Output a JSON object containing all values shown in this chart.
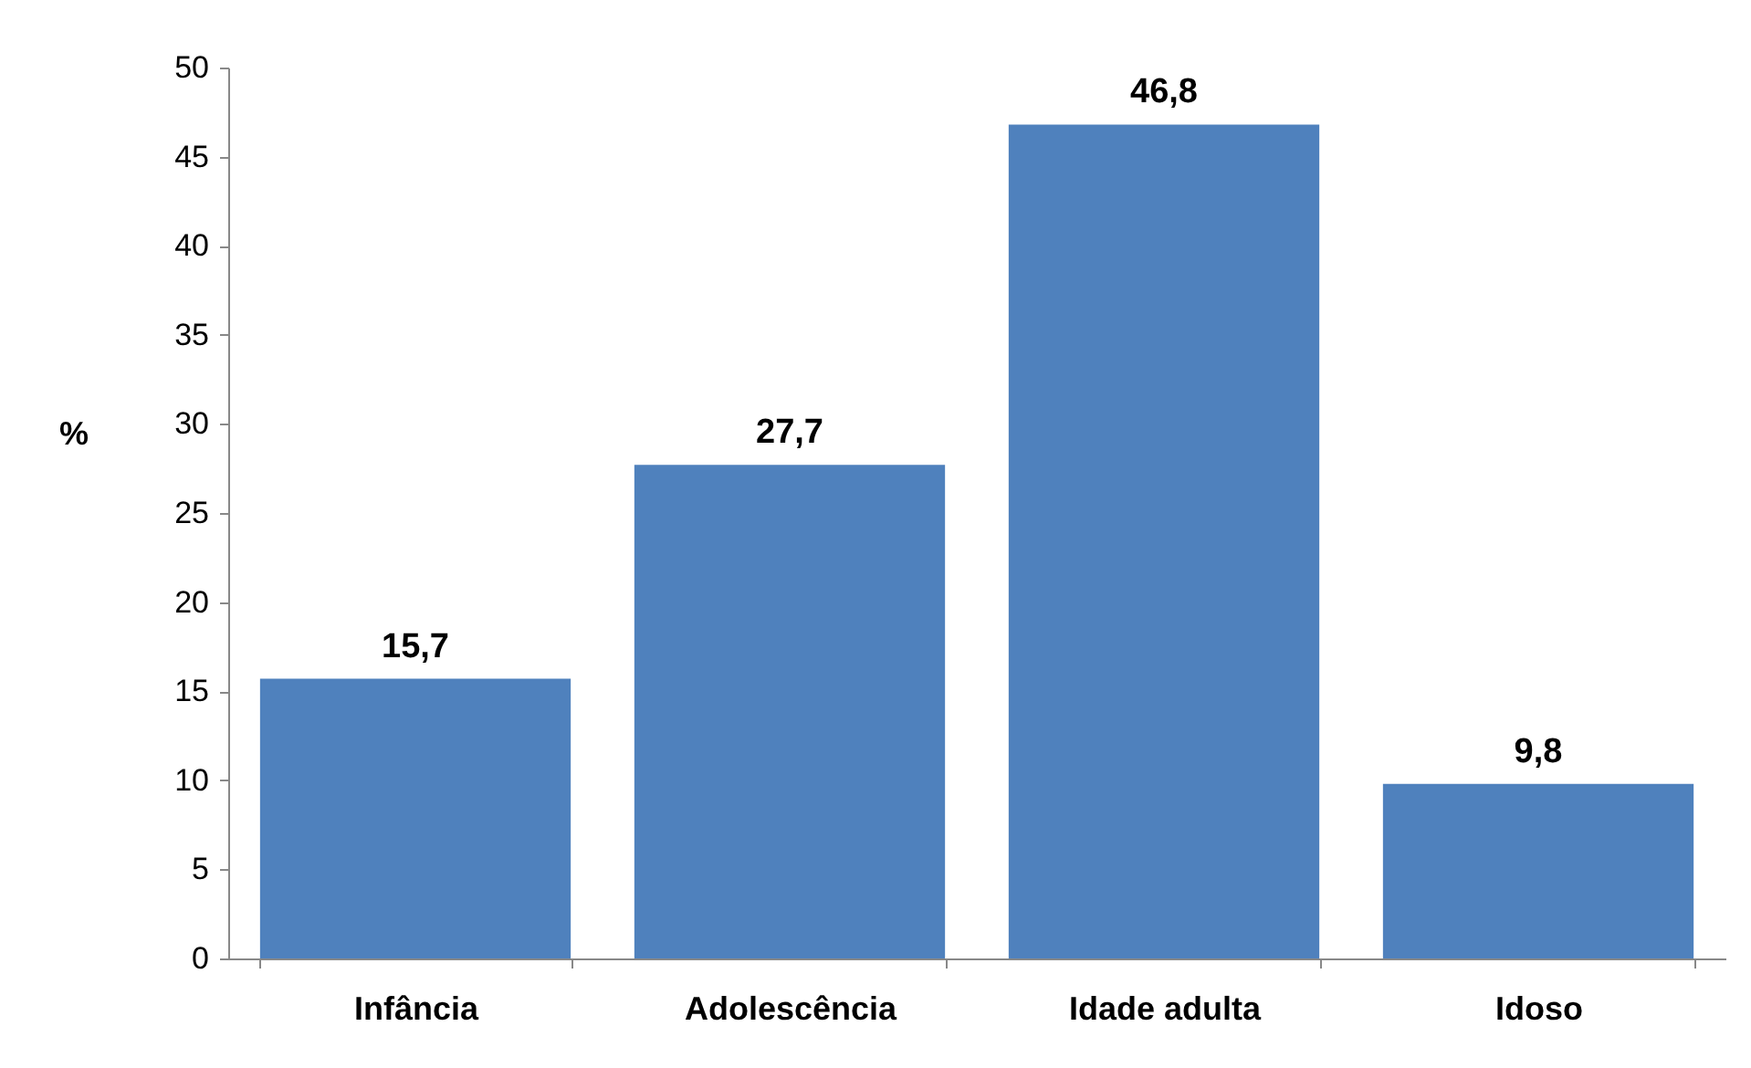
{
  "chart_data": {
    "type": "bar",
    "ylabel": "%",
    "categories": [
      "Infância",
      "Adolescência",
      "Idade adulta",
      "Idoso"
    ],
    "values": [
      15.7,
      27.7,
      46.8,
      9.8
    ],
    "value_labels": [
      "15,7",
      "27,7",
      "46,8",
      "9,8"
    ],
    "color": "#4f81bd",
    "ylim": [
      0,
      50
    ],
    "yticks": [
      0,
      5,
      10,
      15,
      20,
      25,
      30,
      35,
      40,
      45,
      50
    ],
    "grid": false
  }
}
